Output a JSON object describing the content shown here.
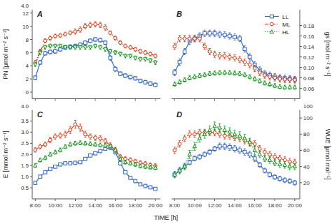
{
  "chart_data": [
    {
      "type": "line",
      "title": "A",
      "ylabel": "PN [μmol m⁻² s⁻¹]",
      "annotations": [
        "4.0"
      ],
      "xlim": [
        7.7,
        20.5
      ],
      "xticks": [
        8,
        10,
        12,
        14,
        16,
        18,
        20
      ],
      "ylim": [
        -1,
        12.5
      ],
      "yticks": [
        0,
        2,
        4,
        6,
        8,
        10,
        12
      ],
      "tick_labels": "y",
      "x": [
        8,
        8.5,
        9,
        9.5,
        10,
        10.5,
        11,
        11.5,
        12,
        12.5,
        13,
        13.5,
        14,
        14.5,
        15,
        15.5,
        16,
        16.5,
        17,
        17.5,
        18,
        18.5,
        19,
        19.5,
        20
      ],
      "series": [
        {
          "name": "LL",
          "marker": "square",
          "line_style": "solid",
          "values": [
            2.2,
            4.5,
            5.9,
            6.1,
            6.2,
            6.5,
            6.8,
            6.9,
            7.0,
            7.2,
            7.5,
            7.8,
            8.0,
            7.9,
            7.5,
            5.2,
            3.5,
            2.8,
            2.5,
            2.3,
            2.1,
            1.7,
            1.5,
            1.3,
            1.1
          ],
          "errors": [
            0.3,
            0.3,
            0.3,
            0.3,
            0.3,
            0.3,
            0.3,
            0.3,
            0.3,
            0.3,
            0.3,
            0.3,
            0.3,
            0.3,
            0.3,
            0.4,
            0.4,
            0.3,
            0.3,
            0.3,
            0.3,
            0.3,
            0.3,
            0.3,
            0.3
          ]
        },
        {
          "name": "ML",
          "marker": "circle",
          "line_style": "dashdot",
          "values": [
            4.5,
            6.2,
            7.8,
            8.2,
            8.5,
            8.6,
            8.8,
            9.0,
            9.2,
            9.5,
            10.0,
            10.2,
            10.3,
            10.2,
            9.8,
            9.0,
            8.2,
            7.5,
            7.0,
            6.8,
            6.5,
            6.2,
            6.0,
            5.8,
            5.5
          ],
          "errors": [
            0.3,
            0.3,
            0.3,
            0.3,
            0.3,
            0.3,
            0.3,
            0.3,
            0.4,
            0.4,
            0.4,
            0.4,
            0.4,
            0.4,
            0.4,
            0.3,
            0.3,
            0.3,
            0.3,
            0.3,
            0.3,
            0.3,
            0.3,
            0.3,
            0.3
          ]
        },
        {
          "name": "HL",
          "marker": "triangle_down",
          "line_style": "dotted",
          "values": [
            4.2,
            6.0,
            6.8,
            7.0,
            7.0,
            7.0,
            6.8,
            6.8,
            6.8,
            6.8,
            6.8,
            6.8,
            7.0,
            6.8,
            6.5,
            6.2,
            6.0,
            5.8,
            5.5,
            5.5,
            5.2,
            5.0,
            5.0,
            4.8,
            4.5
          ],
          "errors": [
            0.3,
            0.3,
            0.3,
            0.3,
            0.3,
            0.3,
            0.3,
            0.3,
            0.3,
            0.3,
            0.3,
            0.3,
            0.3,
            0.3,
            0.3,
            0.3,
            0.3,
            0.3,
            0.3,
            0.3,
            0.3,
            0.3,
            0.3,
            0.3,
            0.3
          ]
        }
      ]
    },
    {
      "type": "line",
      "title": "B",
      "y2label": "gs [mol m⁻² s⁻¹]",
      "legend": "upper right",
      "xlim": [
        7.7,
        20.5
      ],
      "xticks": [
        8,
        10,
        12,
        14,
        16,
        18,
        20
      ],
      "y2lim": [
        0.04,
        0.21
      ],
      "y2ticks": [
        0.06,
        0.08,
        {
          "value": 0.1,
          "label": "0.10"
        },
        0.12,
        0.14,
        0.16,
        0.18
      ],
      "tick_labels": "y",
      "x": [
        8,
        8.5,
        9,
        9.5,
        10,
        10.5,
        11,
        11.5,
        12,
        12.5,
        13,
        13.5,
        14,
        14.5,
        15,
        15.5,
        16,
        16.5,
        17,
        17.5,
        18,
        18.5,
        19,
        19.5,
        20
      ],
      "series": [
        {
          "name": "LL",
          "marker": "square",
          "line_style": "solid",
          "axis": "y2",
          "values": [
            0.09,
            0.11,
            0.13,
            0.15,
            0.155,
            0.16,
            0.165,
            0.165,
            0.165,
            0.163,
            0.162,
            0.16,
            0.158,
            0.155,
            0.135,
            0.12,
            0.105,
            0.095,
            0.088,
            0.085,
            0.082,
            0.08,
            0.079,
            0.078,
            0.077
          ],
          "errors": [
            0.006,
            0.006,
            0.006,
            0.006,
            0.006,
            0.006,
            0.006,
            0.006,
            0.006,
            0.006,
            0.006,
            0.006,
            0.006,
            0.006,
            0.006,
            0.006,
            0.006,
            0.006,
            0.006,
            0.006,
            0.006,
            0.006,
            0.006,
            0.006,
            0.006
          ]
        },
        {
          "name": "ML",
          "marker": "circle",
          "line_style": "dashdot",
          "axis": "y2",
          "values": [
            0.14,
            0.155,
            0.155,
            0.155,
            0.155,
            0.155,
            0.14,
            0.13,
            0.125,
            0.122,
            0.122,
            0.12,
            0.118,
            0.115,
            0.11,
            0.105,
            0.098,
            0.09,
            0.085,
            0.082,
            0.08,
            0.078,
            0.077,
            0.077,
            0.076
          ],
          "errors": [
            0.006,
            0.006,
            0.006,
            0.006,
            0.006,
            0.006,
            0.006,
            0.006,
            0.006,
            0.006,
            0.006,
            0.006,
            0.006,
            0.006,
            0.006,
            0.006,
            0.006,
            0.006,
            0.006,
            0.006,
            0.006,
            0.006,
            0.006,
            0.006,
            0.006
          ]
        },
        {
          "name": "HL",
          "marker": "triangle_up",
          "line_style": "dotted",
          "axis": "y2",
          "values": [
            0.068,
            0.072,
            0.076,
            0.08,
            0.082,
            0.084,
            0.086,
            0.088,
            0.089,
            0.09,
            0.09,
            0.09,
            0.089,
            0.088,
            0.086,
            0.082,
            0.078,
            0.074,
            0.07,
            0.068,
            0.065,
            0.063,
            0.062,
            0.062,
            0.062
          ],
          "errors": [
            0.004,
            0.004,
            0.004,
            0.004,
            0.004,
            0.004,
            0.004,
            0.004,
            0.004,
            0.004,
            0.004,
            0.004,
            0.004,
            0.004,
            0.004,
            0.004,
            0.004,
            0.004,
            0.004,
            0.004,
            0.004,
            0.004,
            0.004,
            0.004,
            0.004
          ]
        }
      ]
    },
    {
      "type": "line",
      "title": "C",
      "ylabel": "E [mmol m⁻² s⁻¹]",
      "xlabel": "TIME [h]",
      "annotations": [
        "4.0"
      ],
      "xlim": [
        7.7,
        20.5
      ],
      "xticks": [
        {
          "value": 8,
          "label": "8:00"
        },
        {
          "value": 10,
          "label": "10:00"
        },
        {
          "value": 12,
          "label": "12:00"
        },
        {
          "value": 14,
          "label": "14:00"
        },
        {
          "value": 16,
          "label": "16:00"
        },
        {
          "value": 18,
          "label": "18:00"
        },
        {
          "value": 20,
          "label": "20:00"
        }
      ],
      "ylim": [
        0,
        4.0
      ],
      "yticks": [
        0.5,
        {
          "value": 1.0,
          "label": "1.0"
        },
        1.5,
        {
          "value": 2.0,
          "label": "2.0"
        },
        2.5,
        {
          "value": 3.0,
          "label": "3.0"
        },
        3.5
      ],
      "x": [
        8,
        8.5,
        9,
        9.5,
        10,
        10.5,
        11,
        11.5,
        12,
        12.5,
        13,
        13.5,
        14,
        14.5,
        15,
        15.5,
        16,
        16.5,
        17,
        17.5,
        18,
        18.5,
        19,
        19.5,
        20
      ],
      "series": [
        {
          "name": "LL",
          "marker": "square",
          "line_style": "solid",
          "values": [
            0.72,
            1.0,
            1.2,
            1.35,
            1.45,
            1.55,
            1.6,
            1.6,
            1.62,
            1.65,
            1.8,
            1.95,
            2.05,
            2.15,
            2.25,
            2.3,
            2.1,
            1.6,
            1.2,
            0.95,
            0.8,
            0.65,
            0.58,
            0.52,
            0.45
          ],
          "errors": [
            0.07,
            0.07,
            0.07,
            0.07,
            0.07,
            0.07,
            0.07,
            0.07,
            0.07,
            0.07,
            0.07,
            0.07,
            0.07,
            0.07,
            0.07,
            0.09,
            0.09,
            0.09,
            0.07,
            0.07,
            0.07,
            0.07,
            0.07,
            0.07,
            0.07
          ]
        },
        {
          "name": "ML",
          "marker": "circle",
          "line_style": "dashdot",
          "values": [
            2.2,
            2.35,
            2.45,
            2.65,
            2.8,
            2.85,
            2.9,
            3.1,
            3.35,
            3.2,
            2.9,
            2.8,
            2.75,
            2.72,
            2.6,
            2.4,
            2.2,
            1.9,
            1.8,
            1.75,
            1.68,
            1.62,
            1.58,
            1.52,
            1.48
          ],
          "errors": [
            0.1,
            0.1,
            0.1,
            0.12,
            0.12,
            0.12,
            0.14,
            0.16,
            0.18,
            0.16,
            0.14,
            0.12,
            0.12,
            0.12,
            0.12,
            0.12,
            0.12,
            0.1,
            0.1,
            0.1,
            0.1,
            0.1,
            0.1,
            0.1,
            0.1
          ]
        },
        {
          "name": "HL",
          "marker": "triangle_up",
          "line_style": "dotted",
          "values": [
            1.5,
            1.75,
            1.85,
            2.0,
            2.1,
            2.2,
            2.35,
            2.45,
            2.5,
            2.52,
            2.5,
            2.48,
            2.45,
            2.42,
            2.4,
            2.38,
            2.2,
            1.8,
            1.65,
            1.6,
            1.55,
            1.48,
            1.45,
            1.42,
            1.4
          ],
          "errors": [
            0.09,
            0.09,
            0.09,
            0.09,
            0.09,
            0.09,
            0.09,
            0.09,
            0.09,
            0.09,
            0.09,
            0.09,
            0.09,
            0.09,
            0.09,
            0.09,
            0.09,
            0.09,
            0.09,
            0.09,
            0.09,
            0.09,
            0.09,
            0.09,
            0.09
          ]
        }
      ]
    },
    {
      "type": "line",
      "title": "D",
      "y2label": "WUE [μmol mol⁻¹]",
      "annotations": [
        "100"
      ],
      "xlim": [
        7.7,
        20.5
      ],
      "xticks": [
        {
          "value": 8,
          "label": "8:00"
        },
        {
          "value": 10,
          "label": "10:00"
        },
        {
          "value": 12,
          "label": "12:00"
        },
        {
          "value": 14,
          "label": "14:00"
        },
        {
          "value": 16,
          "label": "16:00"
        },
        {
          "value": 18,
          "label": "18:00"
        },
        {
          "value": 20,
          "label": "20:00"
        }
      ],
      "y2lim": [
        0,
        110
      ],
      "y2ticks": [
        20,
        40,
        60,
        80,
        100
      ],
      "x": [
        8,
        8.5,
        9,
        9.5,
        10,
        10.5,
        11,
        11.5,
        12,
        12.5,
        13,
        13.5,
        14,
        14.5,
        15,
        15.5,
        16,
        16.5,
        17,
        17.5,
        18,
        18.5,
        19,
        19.5,
        20
      ],
      "series": [
        {
          "name": "LL",
          "marker": "square",
          "line_style": "solid",
          "axis": "y2",
          "values": [
            30,
            35,
            40,
            45,
            50,
            52,
            55,
            58,
            62,
            65,
            65,
            64,
            62,
            60,
            58,
            55,
            50,
            42,
            35,
            30,
            27,
            25,
            23,
            22,
            20
          ],
          "errors": [
            3,
            3,
            3,
            3,
            3,
            3,
            3,
            3,
            3,
            4,
            4,
            4,
            4,
            4,
            4,
            4,
            4,
            3,
            3,
            3,
            3,
            3,
            3,
            3,
            3
          ]
        },
        {
          "name": "ML",
          "marker": "circle",
          "line_style": "dashdot",
          "axis": "y2",
          "values": [
            60,
            68,
            75,
            80,
            80,
            82,
            82,
            82,
            82,
            80,
            78,
            78,
            76,
            75,
            72,
            70,
            68,
            62,
            58,
            55,
            52,
            50,
            48,
            46,
            45
          ],
          "errors": [
            4,
            4,
            4,
            4,
            4,
            4,
            4,
            4,
            4,
            4,
            4,
            4,
            4,
            4,
            4,
            4,
            4,
            4,
            4,
            4,
            4,
            4,
            4,
            4,
            4
          ]
        },
        {
          "name": "HL",
          "marker": "triangle_up",
          "line_style": "dotted",
          "axis": "y2",
          "values": [
            30,
            35,
            40,
            55,
            65,
            75,
            80,
            85,
            90,
            88,
            85,
            83,
            80,
            78,
            75,
            70,
            60,
            55,
            50,
            48,
            45,
            43,
            42,
            40,
            40
          ],
          "errors": [
            4,
            4,
            4,
            5,
            5,
            5,
            5,
            5,
            5,
            5,
            5,
            5,
            5,
            5,
            5,
            5,
            5,
            4,
            4,
            4,
            4,
            4,
            4,
            4,
            4
          ]
        }
      ]
    }
  ]
}
